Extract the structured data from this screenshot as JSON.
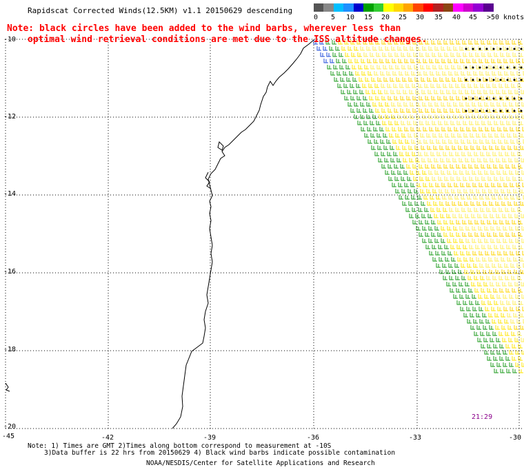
{
  "title": "Rapidscat Corrected Winds(12.5KM) v1.1 20150629 descending",
  "note_lines": [
    "Note: black circles have been added to the wind barbs, wherever less than",
    "optimal wind retrieval conditions are met due to the ISS altitude changes."
  ],
  "legend": {
    "unit": "knots",
    "labels": [
      "0",
      "5",
      "10",
      "15",
      "20",
      "25",
      "30",
      "35",
      "40",
      "45",
      ">50"
    ],
    "colors": [
      "#555555",
      "#888888",
      "#00bfff",
      "#1e90ff",
      "#0000cd",
      "#00a000",
      "#32cd32",
      "#ffff00",
      "#ffd700",
      "#ffa500",
      "#ff4500",
      "#ff0000",
      "#b22222",
      "#8b4513",
      "#ff00ff",
      "#cc00cc",
      "#9400d3",
      "#5a0090"
    ]
  },
  "lat_labels": [
    "-10",
    "-12",
    "-14",
    "-16",
    "-18",
    "-20"
  ],
  "lon_labels": [
    "-45",
    "-42",
    "-39",
    "-36",
    "-33",
    "-30"
  ],
  "time_label": "21:29",
  "footnotes": [
    "Note: 1) Times are GMT 2)Times along bottom correspond to measurement at -10S",
    "3)Data buffer is 22 hrs from 20150629 4) Black wind barbs indicate possible contamination",
    "NOAA/NESDIS/Center for Satellite Applications and Research"
  ]
}
